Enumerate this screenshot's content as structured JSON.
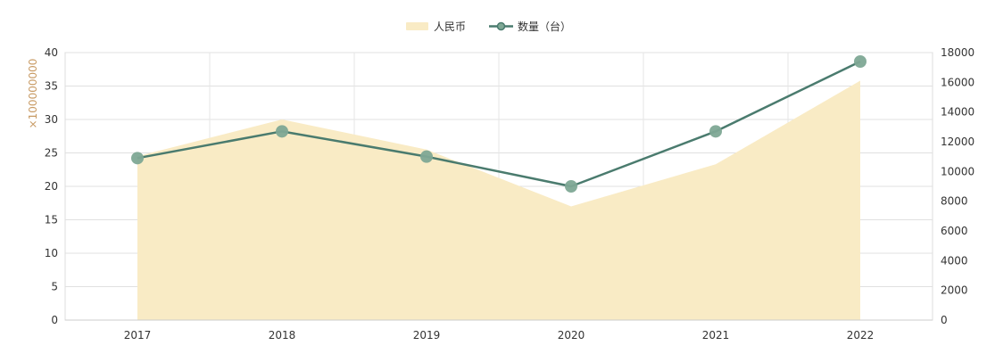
{
  "chart_data": {
    "type": "line",
    "categories": [
      "2017",
      "2018",
      "2019",
      "2020",
      "2021",
      "2022"
    ],
    "series": [
      {
        "name": "人民币",
        "kind": "area",
        "axis": "left",
        "values": [
          24.5,
          30,
          25.5,
          17,
          23.3,
          35.8
        ],
        "color": "#f9ebc5"
      },
      {
        "name": "数量（台）",
        "kind": "line",
        "axis": "right",
        "values": [
          10900,
          12700,
          11000,
          9000,
          12700,
          17400
        ],
        "color": "#4a7b6e",
        "marker_color": "#7fa895"
      }
    ],
    "ylabel": "×100000000",
    "y_left": {
      "range": [
        0,
        40
      ],
      "ticks": [
        "0",
        "5",
        "10",
        "15",
        "20",
        "25",
        "30",
        "35",
        "40"
      ]
    },
    "y_right": {
      "range": [
        0,
        18000
      ],
      "ticks": [
        "0",
        "2000",
        "4000",
        "6000",
        "8000",
        "10000",
        "12000",
        "14000",
        "16000",
        "18000"
      ]
    },
    "grid": true,
    "legend": "top-center"
  }
}
